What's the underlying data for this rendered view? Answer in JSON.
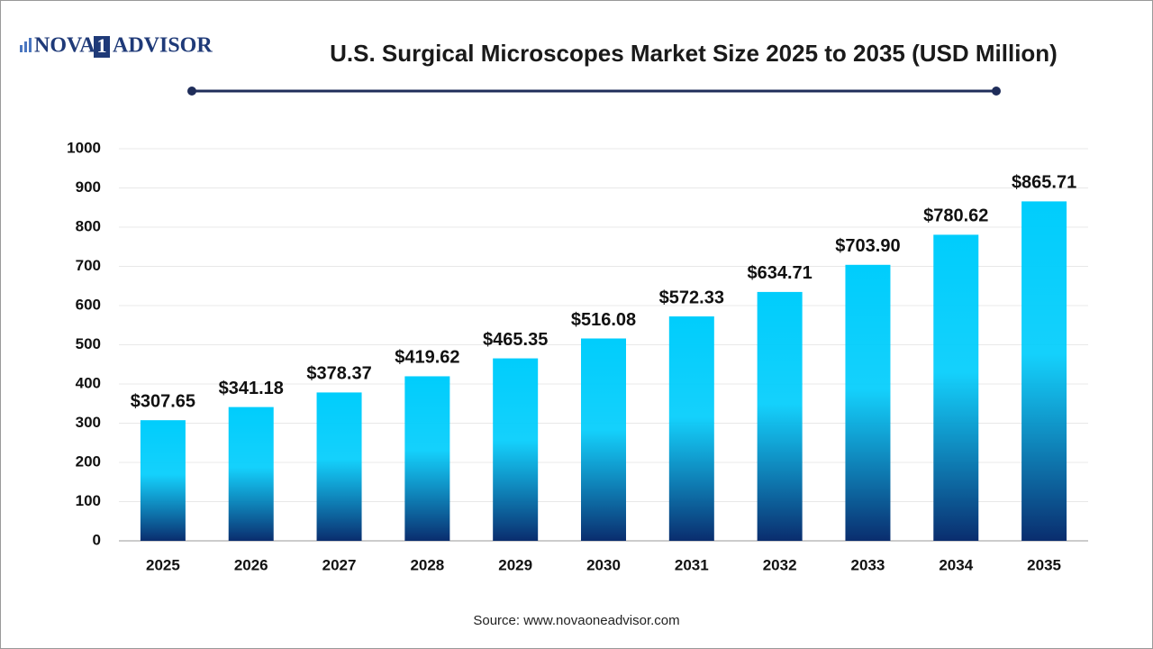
{
  "logo": {
    "left": "NOVA",
    "mark": "1",
    "right": "ADVISOR"
  },
  "chart_data": {
    "type": "bar",
    "title": "U.S. Surgical Microscopes Market Size 2025 to 2035  (USD Million)",
    "source": "Source: www.novaoneadvisor.com",
    "categories": [
      "2025",
      "2026",
      "2027",
      "2028",
      "2029",
      "2030",
      "2031",
      "2032",
      "2033",
      "2034",
      "2035"
    ],
    "values": [
      307.65,
      341.18,
      378.37,
      419.62,
      465.35,
      516.08,
      572.33,
      634.71,
      703.9,
      780.62,
      865.71
    ],
    "value_labels": [
      "$307.65",
      "$341.18",
      "$378.37",
      "$419.62",
      "$465.35",
      "$516.08",
      "$572.33",
      "$634.71",
      "$703.90",
      "$780.62",
      "$865.71"
    ],
    "color": [
      "#00cdfc",
      "#0a2d6e"
    ],
    "ylim": [
      0,
      1000
    ],
    "yticks": [
      0,
      100,
      200,
      300,
      400,
      500,
      600,
      700,
      800,
      900,
      1000
    ],
    "grid": true
  }
}
